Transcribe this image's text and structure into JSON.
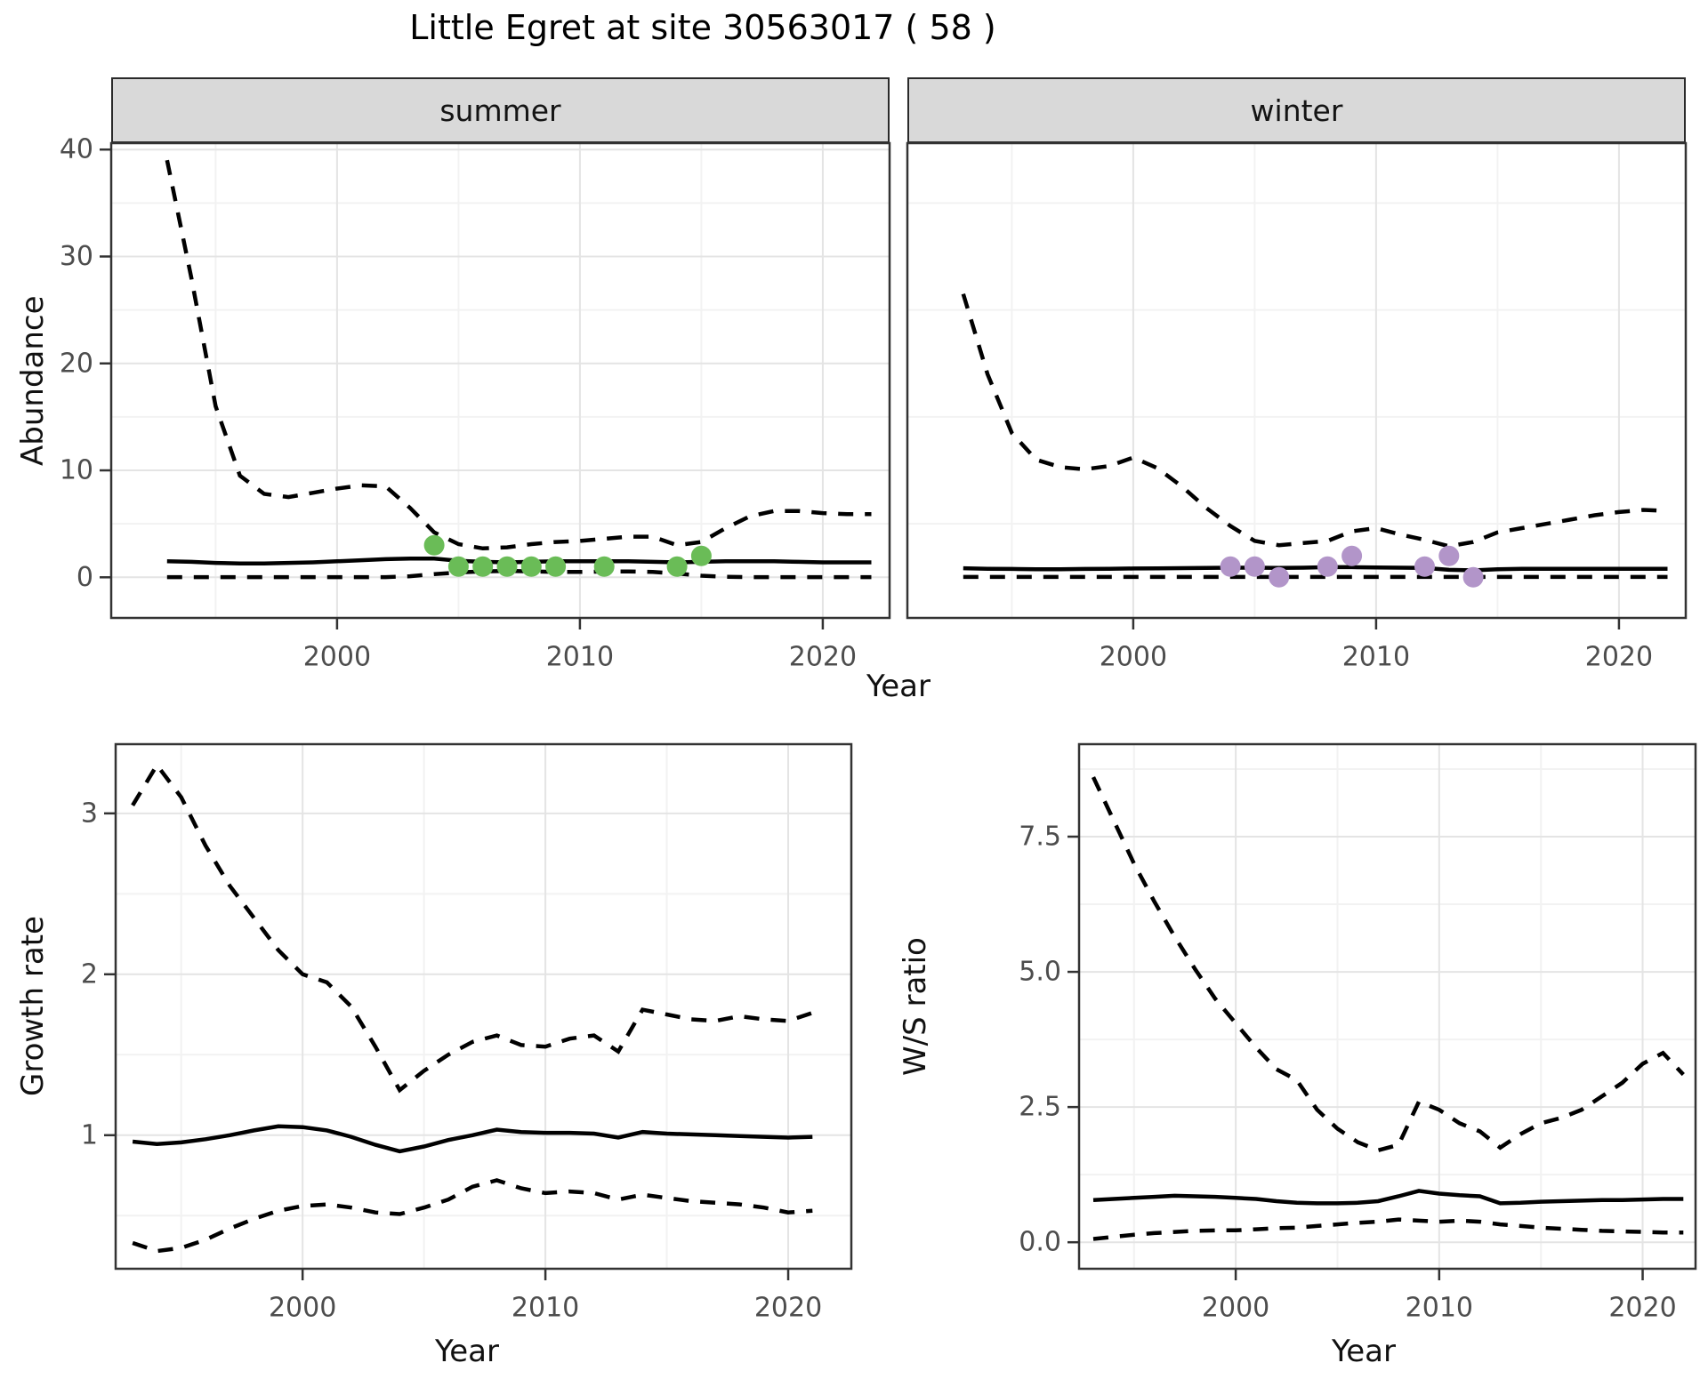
{
  "title": "Little Egret at site 30563017 ( 58 )",
  "colors": {
    "summer_point": "#6abc57",
    "winter_point": "#b295c9",
    "line": "#000000",
    "strip_bg": "#d9d9d9",
    "strip_border": "#2a2a2a",
    "panel_border": "#333333",
    "grid_major": "#e4e4e4",
    "grid_minor": "#f2f2f2",
    "tick_mark": "#333333",
    "tick_label": "#4d4d4d"
  },
  "top_row": {
    "facets": [
      "summer",
      "winter"
    ],
    "y_label": "Abundance",
    "x_label": "Year"
  },
  "bottom_left": {
    "y_label": "Growth rate",
    "x_label": "Year"
  },
  "bottom_right": {
    "y_label": "W/S ratio",
    "x_label": "Year"
  },
  "chart_data": [
    {
      "id": "chart-abundance-summer",
      "type": "line",
      "facet": "summer",
      "ylabel": "Abundance",
      "xlabel": "Year",
      "x_domain": [
        1990.7,
        2022.75
      ],
      "y_domain": [
        -3.8,
        40.6
      ],
      "x_ticks": [
        {
          "v": 2000,
          "label": "2000"
        },
        {
          "v": 2010,
          "label": "2010"
        },
        {
          "v": 2020,
          "label": "2020"
        }
      ],
      "x_minor": [
        1995,
        2005,
        2015
      ],
      "y_ticks": [
        {
          "v": 0,
          "label": "0"
        },
        {
          "v": 10,
          "label": "10"
        },
        {
          "v": 20,
          "label": "20"
        },
        {
          "v": 30,
          "label": "30"
        },
        {
          "v": 40,
          "label": "40"
        }
      ],
      "y_minor": [
        5,
        15,
        25,
        35
      ],
      "years": [
        1993,
        1994,
        1995,
        1996,
        1997,
        1998,
        1999,
        2000,
        2001,
        2002,
        2003,
        2004,
        2005,
        2006,
        2007,
        2008,
        2009,
        2010,
        2011,
        2012,
        2013,
        2014,
        2015,
        2016,
        2017,
        2018,
        2019,
        2020,
        2021,
        2022
      ],
      "series": [
        {
          "name": "upper_ci",
          "style": "dashed",
          "values": [
            39,
            28,
            16,
            9.5,
            7.8,
            7.5,
            7.9,
            8.3,
            8.6,
            8.5,
            6.5,
            4.2,
            3.1,
            2.7,
            2.8,
            3.1,
            3.3,
            3.4,
            3.6,
            3.8,
            3.8,
            3.0,
            3.3,
            4.6,
            5.7,
            6.2,
            6.2,
            6.0,
            5.9,
            5.9
          ]
        },
        {
          "name": "lower_ci",
          "style": "dashed",
          "values": [
            0.02,
            0.02,
            0.02,
            0.02,
            0.02,
            0.02,
            0.02,
            0.02,
            0.02,
            0.02,
            0.1,
            0.3,
            0.45,
            0.55,
            0.6,
            0.55,
            0.5,
            0.5,
            0.55,
            0.55,
            0.5,
            0.35,
            0.15,
            0.05,
            0.02,
            0.02,
            0.02,
            0.02,
            0.02,
            0.02
          ]
        },
        {
          "name": "median",
          "style": "solid",
          "values": [
            1.5,
            1.45,
            1.35,
            1.3,
            1.3,
            1.35,
            1.4,
            1.5,
            1.6,
            1.7,
            1.75,
            1.75,
            1.55,
            1.45,
            1.4,
            1.45,
            1.5,
            1.5,
            1.5,
            1.5,
            1.45,
            1.4,
            1.45,
            1.5,
            1.5,
            1.5,
            1.45,
            1.4,
            1.4,
            1.4
          ]
        }
      ],
      "points": {
        "name": "summer-observations",
        "color_key": "summer_point",
        "x": [
          2004,
          2005,
          2006,
          2007,
          2008,
          2009,
          2011,
          2014,
          2015
        ],
        "y": [
          3,
          1,
          1,
          1,
          1,
          1,
          1,
          1,
          2
        ]
      }
    },
    {
      "id": "chart-abundance-winter",
      "type": "line",
      "facet": "winter",
      "ylabel": "Abundance",
      "xlabel": "Year",
      "x_domain": [
        1990.7,
        2022.75
      ],
      "y_domain": [
        -3.8,
        40.6
      ],
      "x_ticks": [
        {
          "v": 2000,
          "label": "2000"
        },
        {
          "v": 2010,
          "label": "2010"
        },
        {
          "v": 2020,
          "label": "2020"
        }
      ],
      "x_minor": [
        1995,
        2005,
        2015
      ],
      "y_ticks": [],
      "y_minor": [
        5,
        15,
        25,
        35
      ],
      "years": [
        1993,
        1994,
        1995,
        1996,
        1997,
        1998,
        1999,
        2000,
        2001,
        2002,
        2003,
        2004,
        2005,
        2006,
        2007,
        2008,
        2009,
        2010,
        2011,
        2012,
        2013,
        2014,
        2015,
        2016,
        2017,
        2018,
        2019,
        2020,
        2021,
        2022
      ],
      "series": [
        {
          "name": "upper_ci",
          "style": "dashed",
          "values": [
            26.5,
            19,
            13.5,
            11,
            10.3,
            10.1,
            10.4,
            11.2,
            10.2,
            8.5,
            6.5,
            4.8,
            3.4,
            3.0,
            3.2,
            3.4,
            4.3,
            4.6,
            4.0,
            3.5,
            2.9,
            3.3,
            4.2,
            4.6,
            5.0,
            5.4,
            5.8,
            6.1,
            6.3,
            6.2
          ]
        },
        {
          "name": "lower_ci",
          "style": "dashed",
          "values": [
            0.03,
            0.03,
            0.03,
            0.03,
            0.03,
            0.03,
            0.03,
            0.03,
            0.03,
            0.03,
            0.03,
            0.03,
            0.03,
            0.03,
            0.03,
            0.03,
            0.03,
            0.03,
            0.03,
            0.03,
            0.03,
            0.03,
            0.03,
            0.03,
            0.03,
            0.03,
            0.03,
            0.03,
            0.03,
            0.03
          ]
        },
        {
          "name": "median",
          "style": "solid",
          "values": [
            0.85,
            0.8,
            0.78,
            0.76,
            0.76,
            0.78,
            0.8,
            0.82,
            0.84,
            0.86,
            0.88,
            0.9,
            0.9,
            0.88,
            0.9,
            0.95,
            0.95,
            0.92,
            0.9,
            0.88,
            0.7,
            0.65,
            0.75,
            0.8,
            0.8,
            0.8,
            0.8,
            0.8,
            0.8,
            0.8
          ]
        }
      ],
      "points": {
        "name": "winter-observations",
        "color_key": "winter_point",
        "x": [
          2004,
          2005,
          2006,
          2008,
          2009,
          2012,
          2013,
          2014
        ],
        "y": [
          1,
          1,
          0,
          1,
          2,
          1,
          2,
          0
        ]
      }
    },
    {
      "id": "chart-growth",
      "type": "line",
      "facet": null,
      "ylabel": "Growth rate",
      "xlabel": "Year",
      "x_domain": [
        1992.3,
        2022.6
      ],
      "y_domain": [
        0.17,
        3.43
      ],
      "x_ticks": [
        {
          "v": 2000,
          "label": "2000"
        },
        {
          "v": 2010,
          "label": "2010"
        },
        {
          "v": 2020,
          "label": "2020"
        }
      ],
      "x_minor": [
        1995,
        2005,
        2015
      ],
      "y_ticks": [
        {
          "v": 1,
          "label": "1"
        },
        {
          "v": 2,
          "label": "2"
        },
        {
          "v": 3,
          "label": "3"
        }
      ],
      "y_minor": [
        0.5,
        1.5,
        2.5
      ],
      "years": [
        1993,
        1994,
        1995,
        1996,
        1997,
        1998,
        1999,
        2000,
        2001,
        2002,
        2003,
        2004,
        2005,
        2006,
        2007,
        2008,
        2009,
        2010,
        2011,
        2012,
        2013,
        2014,
        2015,
        2016,
        2017,
        2018,
        2019,
        2020,
        2021
      ],
      "series": [
        {
          "name": "upper_ci",
          "style": "dashed",
          "values": [
            3.05,
            3.3,
            3.1,
            2.8,
            2.55,
            2.35,
            2.15,
            2.0,
            1.95,
            1.8,
            1.55,
            1.28,
            1.4,
            1.5,
            1.58,
            1.62,
            1.56,
            1.55,
            1.6,
            1.62,
            1.52,
            1.78,
            1.75,
            1.72,
            1.71,
            1.74,
            1.72,
            1.71,
            1.76
          ]
        },
        {
          "name": "lower_ci",
          "style": "dashed",
          "values": [
            0.33,
            0.28,
            0.3,
            0.35,
            0.42,
            0.48,
            0.53,
            0.56,
            0.57,
            0.55,
            0.52,
            0.51,
            0.55,
            0.6,
            0.68,
            0.72,
            0.67,
            0.64,
            0.65,
            0.64,
            0.6,
            0.63,
            0.61,
            0.59,
            0.58,
            0.57,
            0.55,
            0.52,
            0.53
          ]
        },
        {
          "name": "median",
          "style": "solid",
          "values": [
            0.96,
            0.945,
            0.955,
            0.975,
            1.0,
            1.03,
            1.055,
            1.05,
            1.03,
            0.99,
            0.94,
            0.9,
            0.93,
            0.97,
            1.0,
            1.035,
            1.02,
            1.015,
            1.015,
            1.01,
            0.985,
            1.02,
            1.01,
            1.005,
            1.0,
            0.995,
            0.99,
            0.985,
            0.99
          ]
        }
      ],
      "points": null
    },
    {
      "id": "chart-ws",
      "type": "line",
      "facet": null,
      "ylabel": "W/S ratio",
      "xlabel": "Year",
      "x_domain": [
        1992.3,
        2022.6
      ],
      "y_domain": [
        -0.49,
        9.21
      ],
      "x_ticks": [
        {
          "v": 2000,
          "label": "2000"
        },
        {
          "v": 2010,
          "label": "2010"
        },
        {
          "v": 2020,
          "label": "2020"
        }
      ],
      "x_minor": [
        1995,
        2005,
        2015
      ],
      "y_ticks": [
        {
          "v": 0,
          "label": "0.0"
        },
        {
          "v": 2.5,
          "label": "2.5"
        },
        {
          "v": 5,
          "label": "5.0"
        },
        {
          "v": 7.5,
          "label": "7.5"
        }
      ],
      "y_minor": [
        1.25,
        3.75,
        6.25,
        8.75
      ],
      "years": [
        1993,
        1994,
        1995,
        1996,
        1997,
        1998,
        1999,
        2000,
        2001,
        2002,
        2003,
        2004,
        2005,
        2006,
        2007,
        2008,
        2009,
        2010,
        2011,
        2012,
        2013,
        2014,
        2015,
        2016,
        2017,
        2018,
        2019,
        2020,
        2021,
        2022
      ],
      "series": [
        {
          "name": "upper_ci",
          "style": "dashed",
          "values": [
            8.6,
            7.8,
            7.0,
            6.3,
            5.65,
            5.05,
            4.5,
            4.05,
            3.6,
            3.2,
            3.0,
            2.45,
            2.1,
            1.85,
            1.7,
            1.8,
            2.6,
            2.45,
            2.2,
            2.05,
            1.75,
            2.0,
            2.2,
            2.3,
            2.45,
            2.7,
            2.95,
            3.3,
            3.5,
            3.1
          ]
        },
        {
          "name": "lower_ci",
          "style": "dashed",
          "values": [
            0.06,
            0.1,
            0.14,
            0.17,
            0.19,
            0.21,
            0.22,
            0.22,
            0.24,
            0.26,
            0.27,
            0.3,
            0.33,
            0.36,
            0.38,
            0.42,
            0.4,
            0.38,
            0.4,
            0.38,
            0.33,
            0.3,
            0.27,
            0.25,
            0.23,
            0.21,
            0.2,
            0.19,
            0.18,
            0.18
          ]
        },
        {
          "name": "median",
          "style": "solid",
          "values": [
            0.78,
            0.8,
            0.82,
            0.84,
            0.86,
            0.85,
            0.84,
            0.82,
            0.8,
            0.76,
            0.73,
            0.72,
            0.72,
            0.73,
            0.76,
            0.85,
            0.95,
            0.9,
            0.87,
            0.85,
            0.72,
            0.73,
            0.75,
            0.76,
            0.77,
            0.78,
            0.78,
            0.79,
            0.8,
            0.8
          ]
        }
      ],
      "points": null
    }
  ]
}
